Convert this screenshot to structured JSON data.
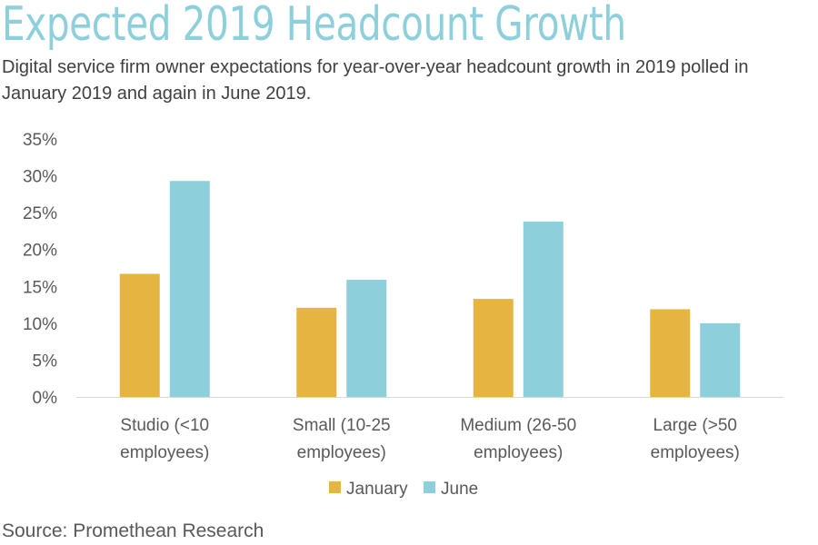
{
  "title": "Expected 2019 Headcount Growth",
  "subtitle": "Digital service firm owner expectations for year-over-year headcount growth in 2019 polled in January 2019 and again in June 2019.",
  "source": "Source: Promethean Research",
  "colors": {
    "title": "#8ecfdc",
    "january": "#e6b441",
    "june": "#8ecfdc",
    "axis_text": "#595959",
    "axis_line": "#d9d9d9"
  },
  "chart_data": {
    "type": "bar",
    "categories": [
      [
        "Studio (<10",
        "employees)"
      ],
      [
        "Small (10-25",
        "employees)"
      ],
      [
        "Medium (26-50",
        "employees)"
      ],
      [
        "Large (>50",
        "employees)"
      ]
    ],
    "series": [
      {
        "name": "January",
        "color": "#e6b441",
        "values": [
          16.7,
          12.1,
          13.3,
          11.9
        ]
      },
      {
        "name": "June",
        "color": "#8ecfdc",
        "values": [
          29.3,
          15.9,
          23.8,
          10.0
        ]
      }
    ],
    "yticks": [
      "0%",
      "5%",
      "10%",
      "15%",
      "20%",
      "25%",
      "30%",
      "35%"
    ],
    "ylim": [
      0,
      35
    ],
    "ytick_step": 5,
    "value_unit": "%",
    "grid": false,
    "legend_position": "bottom"
  }
}
